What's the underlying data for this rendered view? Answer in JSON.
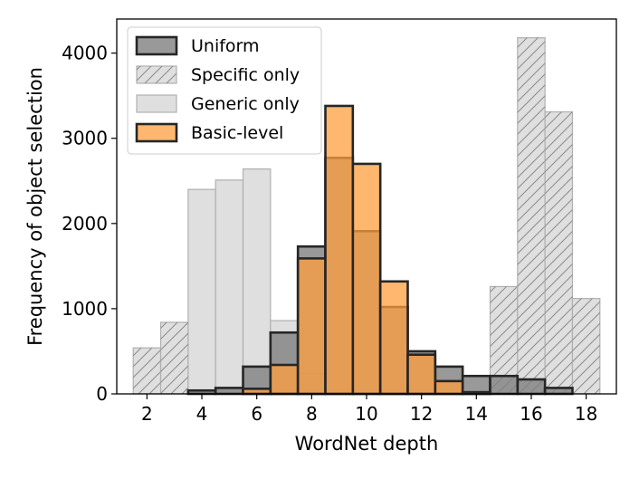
{
  "chart_data": {
    "type": "bar",
    "title": "",
    "xlabel": "WordNet depth",
    "ylabel": "Frequency of object selection",
    "xlim": [
      0.9,
      19.1
    ],
    "ylim": [
      0,
      4400
    ],
    "xticks": [
      2,
      4,
      6,
      8,
      10,
      12,
      14,
      16,
      18
    ],
    "yticks": [
      0,
      1000,
      2000,
      3000,
      4000
    ],
    "bin_width": 1,
    "grid": false,
    "legend_position": "top-left",
    "x": [
      2,
      3,
      4,
      5,
      6,
      7,
      8,
      9,
      10,
      11,
      12,
      13,
      14,
      15,
      16,
      17,
      18
    ],
    "series": [
      {
        "name": "Generic only",
        "style": "gray-transparent",
        "values": [
          0,
          0,
          2400,
          2510,
          2640,
          860,
          240,
          0,
          0,
          0,
          0,
          0,
          0,
          0,
          0,
          0,
          0
        ]
      },
      {
        "name": "Specific only",
        "style": "gray-hatched",
        "values": [
          540,
          840,
          0,
          0,
          0,
          0,
          0,
          0,
          0,
          0,
          0,
          0,
          0,
          1260,
          4180,
          3310,
          1120
        ]
      },
      {
        "name": "Uniform",
        "style": "dark-gray-outlined",
        "values": [
          0,
          0,
          40,
          70,
          320,
          720,
          1730,
          2770,
          1910,
          1020,
          500,
          320,
          210,
          210,
          170,
          70,
          0
        ]
      },
      {
        "name": "Basic-level",
        "style": "orange-outlined",
        "values": [
          0,
          0,
          0,
          0,
          60,
          340,
          1590,
          3380,
          2700,
          1320,
          460,
          150,
          20,
          0,
          0,
          0,
          0
        ]
      }
    ],
    "legend": [
      "Uniform",
      "Specific only",
      "Generic only",
      "Basic-level"
    ],
    "colors": {
      "generic_fill": "#d9d9d9",
      "specific_fill": "#d9d9d9",
      "uniform_fill": "#808080",
      "basic_fill": "#ff9f3f",
      "outline": "#262626"
    }
  }
}
